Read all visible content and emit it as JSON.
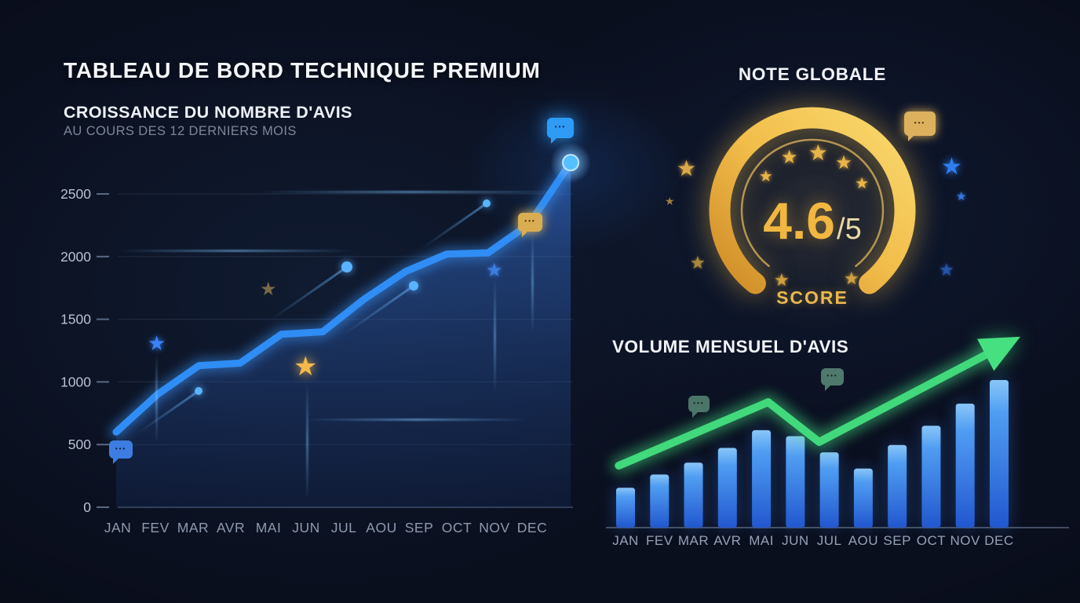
{
  "page": {
    "title": "TABLEAU DE BORD TECHNIQUE PREMIUM"
  },
  "left_chart": {
    "title": "CROISSANCE DU NOMBRE D'AVIS",
    "subtitle": "AU COURS DES 12 DERNIERS MOIS"
  },
  "gauge": {
    "title": "NOTE GLOBALE",
    "score": "4.6",
    "out_of": "/5",
    "label": "SCORE"
  },
  "bar_chart": {
    "title": "VOLUME MENSUEL D'AVIS"
  },
  "months": [
    "JAN",
    "FEV",
    "MAR",
    "AVR",
    "MAI",
    "JUN",
    "JUL",
    "AOU",
    "SEP",
    "OCT",
    "NOV",
    "DEC"
  ],
  "icons": {
    "star_glyph": "★",
    "chat_dots_glyph": "•••",
    "chat_bubble": "speech-bubble-icon",
    "trend_arrow": "arrow-up-right"
  },
  "colors": {
    "background": "#0a0f1e",
    "accent_blue": "#3b82f6",
    "accent_gold": "#f2bd4a",
    "accent_green": "#41d97b",
    "text_primary": "#f2f4f8",
    "text_muted": "#7d8699"
  },
  "chart_data": [
    {
      "type": "line",
      "title": "CROISSANCE DU NOMBRE D'AVIS",
      "subtitle": "AU COURS DES 12 DERNIERS MOIS",
      "x": [
        "JAN",
        "FEV",
        "MAR",
        "AVR",
        "MAI",
        "JUN",
        "JUL",
        "AOU",
        "SEP",
        "OCT",
        "NOV",
        "DEC"
      ],
      "values": [
        600,
        900,
        1130,
        1150,
        1380,
        1400,
        1660,
        1880,
        2020,
        2030,
        2260,
        2750
      ],
      "yticks": [
        0,
        500,
        1000,
        1500,
        2000,
        2500
      ],
      "ylim": [
        0,
        2800
      ],
      "xlabel": "",
      "ylabel": "",
      "grid": true,
      "legend": "none",
      "line_color": "#3b82f6",
      "area_fill": true
    },
    {
      "type": "gauge",
      "title": "NOTE GLOBALE",
      "value": 4.6,
      "max": 5,
      "label": "SCORE",
      "ring_color": "#f2bd4a",
      "stars_in_arc": 5
    },
    {
      "type": "bar",
      "title": "VOLUME MENSUEL D'AVIS",
      "categories": [
        "JAN",
        "FEV",
        "MAR",
        "AVR",
        "MAI",
        "JUN",
        "JUL",
        "AOU",
        "SEP",
        "OCT",
        "NOV",
        "DEC"
      ],
      "values": [
        27,
        36,
        44,
        54,
        66,
        62,
        51,
        40,
        56,
        69,
        84,
        100
      ],
      "units": "relative volume (no y-axis shown, max month = 100)",
      "xlabel": "",
      "ylabel": "",
      "grid": false,
      "legend": "none",
      "bar_color": "#3b82f6",
      "trend": {
        "style": "arrow-up",
        "color": "#41d97b",
        "points": [
          {
            "i": -0.2,
            "v": 42
          },
          {
            "i": 4.2,
            "v": 85
          },
          {
            "i": 5.7,
            "v": 58
          },
          {
            "i": 10.6,
            "v": 117
          }
        ]
      }
    }
  ]
}
